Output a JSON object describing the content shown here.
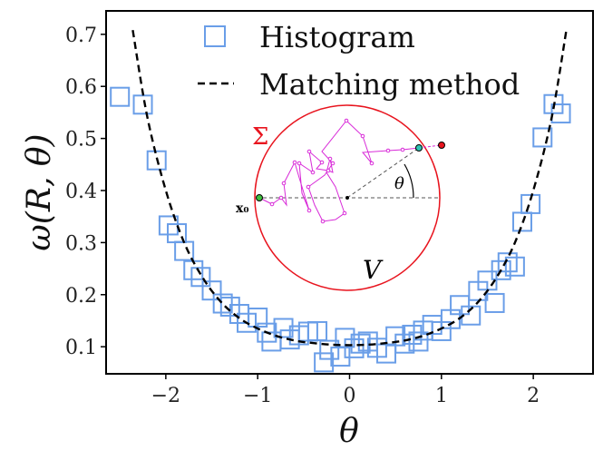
{
  "chart_data": {
    "type": "scatter",
    "title": "",
    "xlabel": "θ",
    "ylabel": "ω(R, θ)",
    "xlim": [
      -2.65,
      2.65
    ],
    "ylim": [
      0.048,
      0.745
    ],
    "xticks": [
      -2,
      -1,
      0,
      1,
      2
    ],
    "xtick_labels": [
      "−2",
      "−1",
      "0",
      "1",
      "2"
    ],
    "yticks": [
      0.1,
      0.2,
      0.3,
      0.4,
      0.5,
      0.6,
      0.7
    ],
    "ytick_labels": [
      "0.1",
      "0.2",
      "0.3",
      "0.4",
      "0.5",
      "0.6",
      "0.7"
    ],
    "legend_position": "top-center",
    "series": [
      {
        "name": "Histogram",
        "kind": "square-marker",
        "color": "#6a9ee8",
        "x": [
          -2.5,
          -2.25,
          -2.1,
          -1.97,
          -1.88,
          -1.8,
          -1.7,
          -1.62,
          -1.5,
          -1.38,
          -1.3,
          -1.2,
          -1.12,
          -1.0,
          -0.9,
          -0.85,
          -0.72,
          -0.65,
          -0.55,
          -0.45,
          -0.35,
          -0.28,
          -0.22,
          -0.1,
          -0.05,
          0.05,
          0.12,
          0.2,
          0.3,
          0.4,
          0.5,
          0.6,
          0.68,
          0.75,
          0.8,
          0.9,
          1.0,
          1.1,
          1.2,
          1.32,
          1.4,
          1.5,
          1.58,
          1.65,
          1.72,
          1.8,
          1.88,
          1.97,
          2.1,
          2.22,
          2.3
        ],
        "y": [
          0.58,
          0.565,
          0.458,
          0.333,
          0.318,
          0.284,
          0.247,
          0.234,
          0.208,
          0.183,
          0.177,
          0.163,
          0.146,
          0.156,
          0.127,
          0.11,
          0.136,
          0.114,
          0.122,
          0.129,
          0.13,
          0.07,
          0.094,
          0.081,
          0.117,
          0.097,
          0.106,
          0.11,
          0.098,
          0.087,
          0.12,
          0.106,
          0.123,
          0.11,
          0.131,
          0.142,
          0.13,
          0.153,
          0.18,
          0.16,
          0.207,
          0.227,
          0.184,
          0.247,
          0.262,
          0.254,
          0.34,
          0.374,
          0.502,
          0.566,
          0.548
        ]
      },
      {
        "name": "Matching method",
        "kind": "dashed-line",
        "color": "#000000",
        "x": [
          -2.36,
          -2.2,
          -2.0,
          -1.8,
          -1.6,
          -1.4,
          -1.2,
          -1.0,
          -0.8,
          -0.6,
          -0.4,
          -0.2,
          0.0,
          0.2,
          0.4,
          0.6,
          0.8,
          1.0,
          1.2,
          1.4,
          1.6,
          1.8,
          2.0,
          2.2,
          2.36
        ],
        "y": [
          0.708,
          0.54,
          0.4,
          0.3,
          0.233,
          0.186,
          0.155,
          0.135,
          0.121,
          0.112,
          0.107,
          0.104,
          0.103,
          0.104,
          0.107,
          0.112,
          0.121,
          0.135,
          0.155,
          0.186,
          0.233,
          0.3,
          0.4,
          0.54,
          0.708
        ]
      }
    ],
    "inset": {
      "boundary_label": "Σ",
      "domain_label": "V",
      "start_label": "x₀",
      "angle_label": "θ",
      "boundary_color": "#e8141e",
      "walk_color": "#d82ad8"
    }
  }
}
